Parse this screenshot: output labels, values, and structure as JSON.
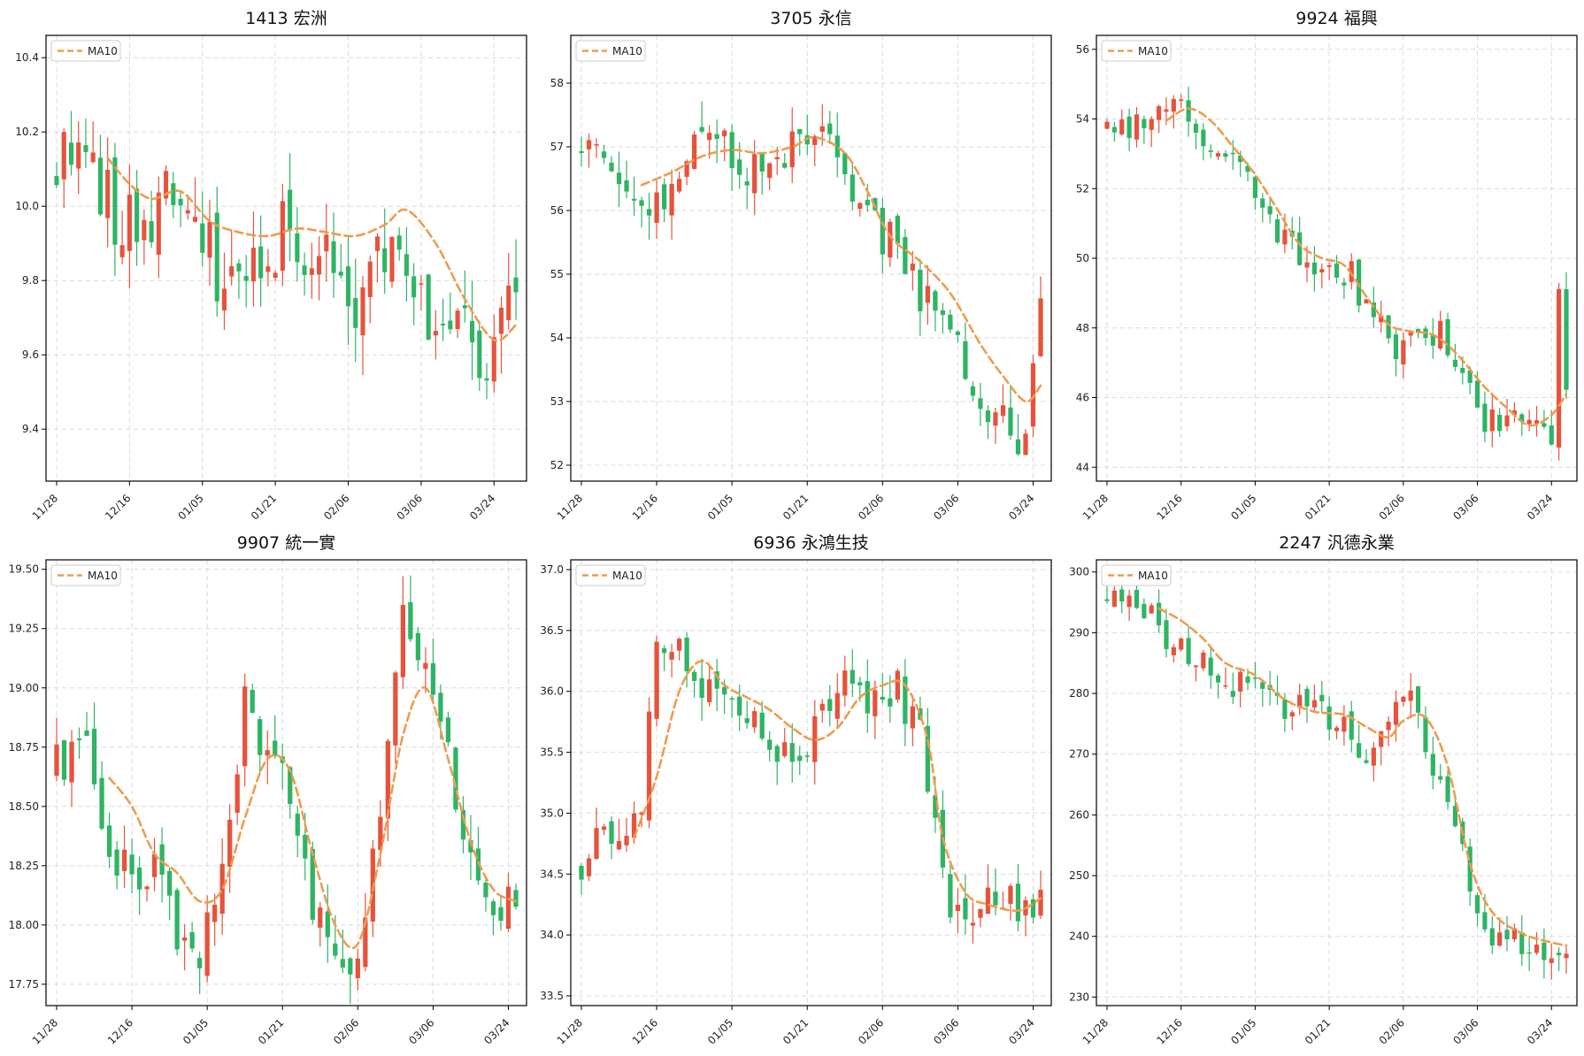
{
  "colors": {
    "up": "#e5533d",
    "down": "#2eb464",
    "ma": "#ef9b4e",
    "grid": "#d9d9d9",
    "axis": "#000000"
  },
  "chart_data": [
    {
      "type": "candlestick",
      "title": "1413 宏洲",
      "legend": "MA10",
      "legend_position": "top-left",
      "grid": true,
      "ylim": [
        9.26,
        10.46
      ],
      "yticks": [
        "9.4",
        "9.6",
        "9.8",
        "10.0",
        "10.2",
        "10.4"
      ],
      "xticks": [
        "11/28",
        "12/16",
        "01/05",
        "01/21",
        "02/06",
        "03/06",
        "03/24"
      ],
      "xtick_index": [
        0,
        10,
        20,
        30,
        40,
        50,
        60
      ],
      "points": 64,
      "anchors": [
        [
          0,
          10.1
        ],
        [
          3,
          10.2
        ],
        [
          6,
          10.05
        ],
        [
          9,
          9.95
        ],
        [
          14,
          10.0
        ],
        [
          17,
          10.0
        ],
        [
          20,
          9.9
        ],
        [
          23,
          9.8
        ],
        [
          26,
          9.85
        ],
        [
          29,
          9.9
        ],
        [
          32,
          9.95
        ],
        [
          35,
          9.85
        ],
        [
          38,
          9.9
        ],
        [
          41,
          9.75
        ],
        [
          44,
          9.9
        ],
        [
          47,
          9.95
        ],
        [
          50,
          9.75
        ],
        [
          53,
          9.6
        ],
        [
          56,
          9.65
        ],
        [
          59,
          9.5
        ],
        [
          61,
          9.7
        ],
        [
          63,
          9.85
        ]
      ],
      "ma": [
        [
          7,
          10.13
        ],
        [
          10,
          10.06
        ],
        [
          13,
          10.02
        ],
        [
          17,
          10.04
        ],
        [
          21,
          9.96
        ],
        [
          25,
          9.93
        ],
        [
          29,
          9.92
        ],
        [
          33,
          9.94
        ],
        [
          37,
          9.93
        ],
        [
          41,
          9.92
        ],
        [
          45,
          9.95
        ],
        [
          48,
          9.99
        ],
        [
          52,
          9.9
        ],
        [
          56,
          9.75
        ],
        [
          60,
          9.64
        ],
        [
          63,
          9.68
        ]
      ],
      "vol": 0.12,
      "seed": 11
    },
    {
      "type": "candlestick",
      "title": "3705 永信",
      "legend": "MA10",
      "legend_position": "top-left",
      "grid": true,
      "ylim": [
        51.75,
        58.75
      ],
      "yticks": [
        "52",
        "53",
        "54",
        "55",
        "56",
        "57",
        "58"
      ],
      "xticks": [
        "11/28",
        "12/16",
        "01/05",
        "01/21",
        "02/06",
        "03/06",
        "03/24"
      ],
      "xtick_index": [
        0,
        10,
        20,
        30,
        40,
        50,
        60
      ],
      "points": 62,
      "anchors": [
        [
          0,
          57.0
        ],
        [
          4,
          56.5
        ],
        [
          8,
          56.2
        ],
        [
          12,
          56.3
        ],
        [
          16,
          57.3
        ],
        [
          20,
          56.8
        ],
        [
          24,
          56.5
        ],
        [
          28,
          57.0
        ],
        [
          31,
          57.1
        ],
        [
          34,
          56.8
        ],
        [
          37,
          56.0
        ],
        [
          40,
          55.6
        ],
        [
          43,
          55.2
        ],
        [
          46,
          54.5
        ],
        [
          50,
          53.8
        ],
        [
          54,
          53.0
        ],
        [
          57,
          52.8
        ],
        [
          59,
          52.2
        ],
        [
          61,
          54.3
        ]
      ],
      "ma": [
        [
          8,
          56.4
        ],
        [
          12,
          56.6
        ],
        [
          16,
          56.85
        ],
        [
          20,
          56.95
        ],
        [
          24,
          56.9
        ],
        [
          28,
          57.0
        ],
        [
          31,
          57.15
        ],
        [
          35,
          56.9
        ],
        [
          38,
          56.3
        ],
        [
          41,
          55.6
        ],
        [
          45,
          55.2
        ],
        [
          49,
          54.7
        ],
        [
          53,
          53.9
        ],
        [
          56,
          53.4
        ],
        [
          59,
          53.0
        ],
        [
          61,
          53.25
        ]
      ],
      "vol": 0.45,
      "seed": 23
    },
    {
      "type": "candlestick",
      "title": "9924 福興",
      "legend": "MA10",
      "legend_position": "top-left",
      "grid": true,
      "ylim": [
        43.6,
        56.4
      ],
      "yticks": [
        "44",
        "46",
        "48",
        "50",
        "52",
        "54",
        "56"
      ],
      "xticks": [
        "11/28",
        "12/16",
        "01/05",
        "01/21",
        "02/06",
        "03/06",
        "03/24"
      ],
      "xtick_index": [
        0,
        10,
        20,
        30,
        40,
        50,
        60
      ],
      "points": 63,
      "anchors": [
        [
          0,
          53.8
        ],
        [
          4,
          53.8
        ],
        [
          8,
          54.0
        ],
        [
          10,
          55.0
        ],
        [
          12,
          53.5
        ],
        [
          15,
          53.0
        ],
        [
          18,
          52.4
        ],
        [
          21,
          51.5
        ],
        [
          24,
          50.5
        ],
        [
          27,
          49.8
        ],
        [
          30,
          49.8
        ],
        [
          33,
          49.5
        ],
        [
          36,
          48.2
        ],
        [
          39,
          47.5
        ],
        [
          42,
          47.8
        ],
        [
          45,
          47.8
        ],
        [
          48,
          46.8
        ],
        [
          51,
          45.2
        ],
        [
          54,
          45.3
        ],
        [
          57,
          45.4
        ],
        [
          60,
          45.0
        ],
        [
          61,
          49.0
        ],
        [
          62,
          46.5
        ]
      ],
      "ma": [
        [
          8,
          53.95
        ],
        [
          11,
          54.3
        ],
        [
          14,
          53.95
        ],
        [
          17,
          53.2
        ],
        [
          20,
          52.4
        ],
        [
          23,
          51.4
        ],
        [
          26,
          50.4
        ],
        [
          29,
          50.0
        ],
        [
          32,
          49.8
        ],
        [
          35,
          48.9
        ],
        [
          38,
          48.1
        ],
        [
          41,
          47.9
        ],
        [
          44,
          47.8
        ],
        [
          47,
          47.3
        ],
        [
          51,
          46.3
        ],
        [
          54,
          45.7
        ],
        [
          57,
          45.2
        ],
        [
          60,
          45.5
        ],
        [
          62,
          46.1
        ]
      ],
      "vol": 0.55,
      "seed": 37
    },
    {
      "type": "candlestick",
      "title": "9907 統一實",
      "legend": "MA10",
      "legend_position": "top-left",
      "grid": true,
      "ylim": [
        17.66,
        19.54
      ],
      "yticks": [
        "17.75",
        "18.00",
        "18.25",
        "18.50",
        "18.75",
        "19.00",
        "19.25",
        "19.50"
      ],
      "xticks": [
        "11/28",
        "12/16",
        "01/05",
        "01/21",
        "02/06",
        "03/06",
        "03/24"
      ],
      "xtick_index": [
        0,
        10,
        20,
        30,
        40,
        50,
        60
      ],
      "points": 62,
      "anchors": [
        [
          0,
          18.65
        ],
        [
          4,
          18.7
        ],
        [
          7,
          18.3
        ],
        [
          10,
          18.2
        ],
        [
          13,
          18.3
        ],
        [
          16,
          17.95
        ],
        [
          19,
          17.85
        ],
        [
          22,
          18.3
        ],
        [
          25,
          18.9
        ],
        [
          28,
          18.75
        ],
        [
          31,
          18.6
        ],
        [
          34,
          18.1
        ],
        [
          37,
          17.85
        ],
        [
          40,
          17.85
        ],
        [
          43,
          18.5
        ],
        [
          46,
          19.3
        ],
        [
          49,
          19.1
        ],
        [
          52,
          18.7
        ],
        [
          55,
          18.2
        ],
        [
          58,
          18.05
        ],
        [
          61,
          18.1
        ]
      ],
      "ma": [
        [
          7,
          18.62
        ],
        [
          10,
          18.5
        ],
        [
          13,
          18.3
        ],
        [
          16,
          18.22
        ],
        [
          19,
          18.1
        ],
        [
          22,
          18.15
        ],
        [
          25,
          18.45
        ],
        [
          28,
          18.7
        ],
        [
          31,
          18.65
        ],
        [
          34,
          18.3
        ],
        [
          37,
          18.0
        ],
        [
          40,
          17.92
        ],
        [
          43,
          18.3
        ],
        [
          46,
          18.8
        ],
        [
          49,
          19.0
        ],
        [
          52,
          18.7
        ],
        [
          55,
          18.35
        ],
        [
          58,
          18.15
        ],
        [
          61,
          18.1
        ]
      ],
      "vol": 0.14,
      "seed": 41
    },
    {
      "type": "candlestick",
      "title": "6936 永鴻生技",
      "legend": "MA10",
      "legend_position": "top-left",
      "grid": true,
      "ylim": [
        33.42,
        37.08
      ],
      "yticks": [
        "33.5",
        "34.0",
        "34.5",
        "35.0",
        "35.5",
        "36.0",
        "36.5",
        "37.0"
      ],
      "xticks": [
        "11/28",
        "12/16",
        "01/05",
        "01/21",
        "02/06",
        "03/06",
        "03/24"
      ],
      "xtick_index": [
        0,
        10,
        20,
        30,
        40,
        50,
        60
      ],
      "points": 62,
      "anchors": [
        [
          0,
          34.6
        ],
        [
          3,
          34.95
        ],
        [
          6,
          34.75
        ],
        [
          8,
          35.0
        ],
        [
          10,
          36.5
        ],
        [
          12,
          36.4
        ],
        [
          15,
          36.1
        ],
        [
          18,
          36.0
        ],
        [
          21,
          35.8
        ],
        [
          24,
          35.7
        ],
        [
          27,
          35.5
        ],
        [
          30,
          35.6
        ],
        [
          33,
          35.9
        ],
        [
          36,
          36.1
        ],
        [
          39,
          35.9
        ],
        [
          42,
          36.0
        ],
        [
          45,
          35.7
        ],
        [
          48,
          34.4
        ],
        [
          51,
          34.1
        ],
        [
          54,
          34.3
        ],
        [
          57,
          34.25
        ],
        [
          61,
          34.3
        ]
      ],
      "ma": [
        [
          7,
          34.8
        ],
        [
          10,
          35.3
        ],
        [
          13,
          36.0
        ],
        [
          16,
          36.25
        ],
        [
          19,
          36.05
        ],
        [
          22,
          35.95
        ],
        [
          25,
          35.85
        ],
        [
          28,
          35.7
        ],
        [
          31,
          35.6
        ],
        [
          34,
          35.7
        ],
        [
          37,
          35.95
        ],
        [
          40,
          36.05
        ],
        [
          43,
          36.05
        ],
        [
          46,
          35.6
        ],
        [
          48,
          34.8
        ],
        [
          51,
          34.35
        ],
        [
          54,
          34.25
        ],
        [
          58,
          34.2
        ],
        [
          61,
          34.3
        ]
      ],
      "vol": 0.22,
      "seed": 53
    },
    {
      "type": "candlestick",
      "title": "2247 汎德永業",
      "legend": "MA10",
      "legend_position": "top-left",
      "grid": true,
      "ylim": [
        228.6,
        302.0
      ],
      "yticks": [
        "230",
        "240",
        "250",
        "260",
        "270",
        "280",
        "290",
        "300"
      ],
      "xticks": [
        "11/28",
        "12/16",
        "01/05",
        "01/21",
        "02/06",
        "03/06",
        "03/24"
      ],
      "xtick_index": [
        0,
        10,
        20,
        30,
        40,
        50,
        60
      ],
      "points": 63,
      "anchors": [
        [
          0,
          296
        ],
        [
          4,
          295
        ],
        [
          8,
          290
        ],
        [
          12,
          286
        ],
        [
          16,
          282
        ],
        [
          20,
          281
        ],
        [
          24,
          276
        ],
        [
          27,
          280
        ],
        [
          30,
          276
        ],
        [
          33,
          273
        ],
        [
          36,
          270
        ],
        [
          39,
          276
        ],
        [
          41,
          278
        ],
        [
          43,
          272
        ],
        [
          46,
          262
        ],
        [
          48,
          255
        ],
        [
          51,
          240
        ],
        [
          54,
          240
        ],
        [
          57,
          238
        ],
        [
          60,
          238
        ],
        [
          62,
          237
        ]
      ],
      "ma": [
        [
          7,
          294.0
        ],
        [
          10,
          292.0
        ],
        [
          13,
          289.0
        ],
        [
          16,
          285.0
        ],
        [
          20,
          283.0
        ],
        [
          24,
          279.0
        ],
        [
          28,
          277.0
        ],
        [
          32,
          276.5
        ],
        [
          35,
          274.5
        ],
        [
          38,
          272.8
        ],
        [
          40,
          275.5
        ],
        [
          43,
          276.0
        ],
        [
          46,
          268.0
        ],
        [
          49,
          252.0
        ],
        [
          52,
          244.0
        ],
        [
          56,
          240.5
        ],
        [
          60,
          239.0
        ],
        [
          62,
          238.5
        ]
      ],
      "vol": 3.4,
      "seed": 67
    }
  ]
}
